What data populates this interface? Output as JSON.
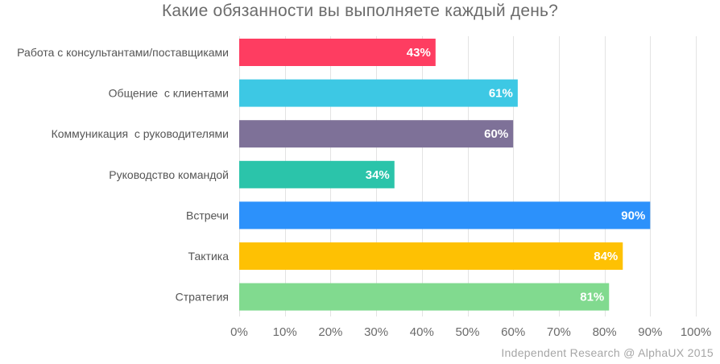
{
  "chart_data": {
    "type": "bar",
    "orientation": "horizontal",
    "title": "Какие обязанности вы выполняете каждый день?",
    "categories": [
      "Работа с консультантами/поставщиками",
      "Общение  с клиентами",
      "Коммуникация  с руководителями",
      "Руководство командой",
      "Встречи",
      "Тактика",
      "Стратегия"
    ],
    "values": [
      43,
      61,
      60,
      34,
      90,
      84,
      81
    ],
    "value_labels": [
      "43%",
      "61%",
      "60%",
      "34%",
      "90%",
      "84%",
      "81%"
    ],
    "colors": [
      "#fe3d61",
      "#3dc8e4",
      "#7e7198",
      "#2bc4aa",
      "#2c91fb",
      "#fec103",
      "#81da8f"
    ],
    "xlim": [
      0,
      100
    ],
    "xticks": [
      0,
      10,
      20,
      30,
      40,
      50,
      60,
      70,
      80,
      90,
      100
    ],
    "xtick_labels": [
      "0%",
      "10%",
      "20%",
      "30%",
      "40%",
      "50%",
      "60%",
      "70%",
      "80%",
      "90%",
      "100%"
    ],
    "grid": "vertical",
    "legend": "none"
  },
  "footer": {
    "credit": "Independent  Research @ AlphaUX 2015"
  }
}
